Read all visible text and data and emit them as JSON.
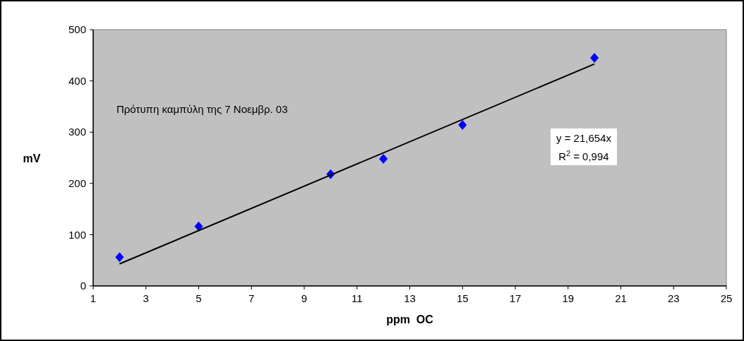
{
  "chart_data": {
    "type": "scatter",
    "xlabel": "ppm  OC",
    "ylabel": "mV",
    "xlim": [
      1,
      25
    ],
    "xticks": [
      1,
      3,
      5,
      7,
      9,
      11,
      13,
      15,
      17,
      19,
      21,
      23,
      25
    ],
    "ylim": [
      0,
      500
    ],
    "yticks": [
      0,
      100,
      200,
      300,
      400,
      500
    ],
    "grid": false,
    "series": [
      {
        "color": "#0000ff",
        "marker": "diamond",
        "x": [
          2,
          5,
          10,
          12,
          15,
          20
        ],
        "values": [
          56,
          116,
          218,
          248,
          314,
          445
        ]
      },
      {
        "type": "line",
        "color": "#000000",
        "marker": "none",
        "line_style": "solid",
        "x": [
          2,
          20
        ],
        "values": [
          43,
          433
        ]
      }
    ],
    "annotations": [
      "Πρότυπη καμπύλη της 7 Νοεμβρ. 03",
      "y = 21,654x",
      "R$^{2}$ = 0,994"
    ]
  }
}
